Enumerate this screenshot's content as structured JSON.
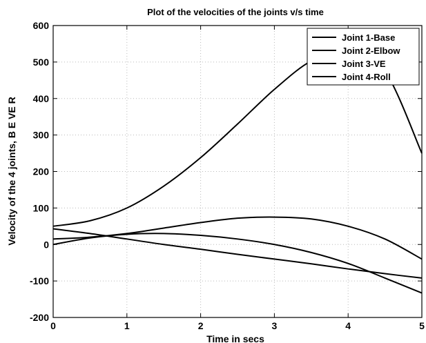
{
  "chart_data": {
    "type": "line",
    "title": "Plot of the velocities of the joints v/s time",
    "xlabel": "Time in secs",
    "ylabel": "Velocity of the 4 joints, B E VE R",
    "xlim": [
      0,
      5
    ],
    "ylim": [
      -200,
      600
    ],
    "xticks": [
      0,
      1,
      2,
      3,
      4,
      5
    ],
    "yticks": [
      -200,
      -100,
      0,
      100,
      200,
      300,
      400,
      500,
      600
    ],
    "grid": true,
    "legend_position": "top-right",
    "line_color": "#000000",
    "series": [
      {
        "name": "Joint 1-Base",
        "x": [
          0,
          0.5,
          1,
          1.5,
          2,
          2.5,
          3,
          3.5,
          4,
          4.5,
          5
        ],
        "y": [
          50,
          65,
          100,
          160,
          238,
          330,
          425,
          503,
          535,
          475,
          250
        ]
      },
      {
        "name": "Joint 2-Elbow",
        "x": [
          0,
          0.5,
          1,
          1.5,
          2,
          2.5,
          3,
          3.5,
          4,
          4.5,
          5
        ],
        "y": [
          15,
          20,
          30,
          45,
          60,
          72,
          75,
          70,
          50,
          15,
          -40
        ]
      },
      {
        "name": "Joint 3-VE",
        "x": [
          0,
          0.5,
          1,
          1.5,
          2,
          2.5,
          3,
          3.5,
          4,
          4.5,
          5
        ],
        "y": [
          0,
          18,
          28,
          30,
          25,
          15,
          0,
          -22,
          -52,
          -92,
          -133
        ]
      },
      {
        "name": "Joint 4-Roll",
        "x": [
          0,
          0.5,
          1,
          1.5,
          2,
          2.5,
          3,
          3.5,
          4,
          4.5,
          5
        ],
        "y": [
          43,
          30,
          15,
          0,
          -13,
          -27,
          -40,
          -53,
          -67,
          -80,
          -92
        ]
      }
    ]
  }
}
